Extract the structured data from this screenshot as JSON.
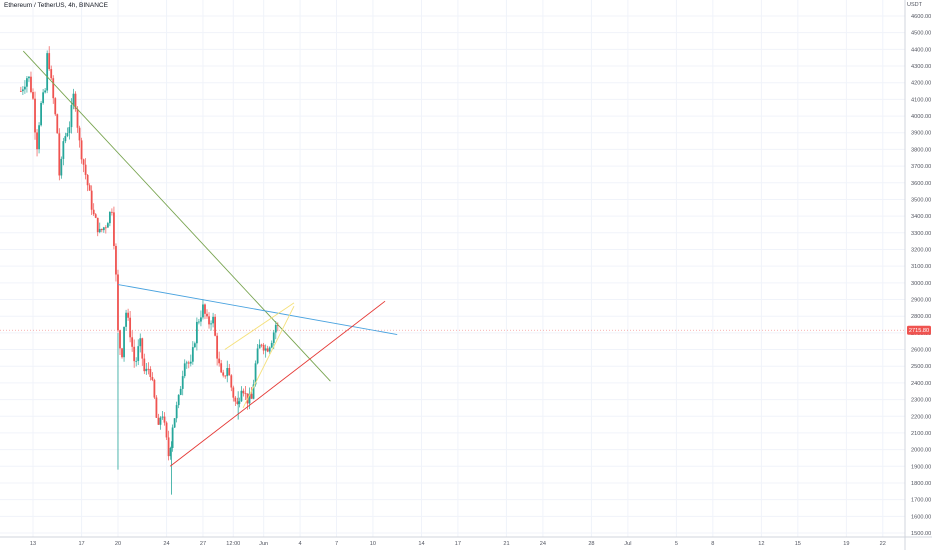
{
  "header": {
    "title": "Ethereum / TetherUS, 4h, BINANCE",
    "unit": "USDT"
  },
  "chart_data": {
    "type": "candlestick",
    "title": "Ethereum / TetherUS, 4h, BINANCE",
    "ylabel": "USDT",
    "ylim": [
      1500,
      4700
    ],
    "y_ticks": [
      "4600.00",
      "4500.00",
      "4400.00",
      "4300.00",
      "4200.00",
      "4100.00",
      "4000.00",
      "3900.00",
      "3800.00",
      "3700.00",
      "3600.00",
      "3500.00",
      "3400.00",
      "3300.00",
      "3200.00",
      "3100.00",
      "3000.00",
      "2900.00",
      "2800.00",
      "2700.00",
      "2600.00",
      "2500.00",
      "2400.00",
      "2300.00",
      "2200.00",
      "2100.00",
      "2000.00",
      "1900.00",
      "1800.00",
      "1700.00",
      "1600.00",
      "1500.00"
    ],
    "x_ticks": [
      {
        "label": "13",
        "day": 0
      },
      {
        "label": "17",
        "day": 4
      },
      {
        "label": "20",
        "day": 7
      },
      {
        "label": "24",
        "day": 11
      },
      {
        "label": "27",
        "day": 14
      },
      {
        "label": "12:00",
        "day": 16.5
      },
      {
        "label": "Jun",
        "day": 19
      },
      {
        "label": "4",
        "day": 22
      },
      {
        "label": "7",
        "day": 25
      },
      {
        "label": "10",
        "day": 28
      },
      {
        "label": "14",
        "day": 32
      },
      {
        "label": "17",
        "day": 35
      },
      {
        "label": "21",
        "day": 39
      },
      {
        "label": "24",
        "day": 42
      },
      {
        "label": "28",
        "day": 46
      },
      {
        "label": "Jul",
        "day": 49
      },
      {
        "label": "5",
        "day": 53
      },
      {
        "label": "8",
        "day": 56
      },
      {
        "label": "12",
        "day": 60
      },
      {
        "label": "15",
        "day": 63
      },
      {
        "label": "19",
        "day": 67
      },
      {
        "label": "22",
        "day": 70
      }
    ],
    "last_price": "2715.80",
    "last_price_value": 2715.8,
    "colors": {
      "up": "#26a69a",
      "down": "#ef5350",
      "grid": "#f0f3fa",
      "price_line": "#ef5350"
    },
    "anchors": [
      {
        "d": -1.0,
        "p": 4150
      },
      {
        "d": -0.4,
        "p": 4250
      },
      {
        "d": 0.0,
        "p": 4100
      },
      {
        "d": 0.3,
        "p": 3800
      },
      {
        "d": 0.6,
        "p": 4050
      },
      {
        "d": 1.0,
        "p": 4150
      },
      {
        "d": 1.2,
        "p": 4400
      },
      {
        "d": 1.5,
        "p": 4200
      },
      {
        "d": 2.0,
        "p": 3900
      },
      {
        "d": 2.2,
        "p": 3600
      },
      {
        "d": 2.5,
        "p": 3850
      },
      {
        "d": 3.0,
        "p": 3950
      },
      {
        "d": 3.4,
        "p": 4150
      },
      {
        "d": 3.8,
        "p": 3850
      },
      {
        "d": 4.2,
        "p": 3700
      },
      {
        "d": 4.6,
        "p": 3550
      },
      {
        "d": 5.0,
        "p": 3400
      },
      {
        "d": 5.5,
        "p": 3300
      },
      {
        "d": 6.0,
        "p": 3350
      },
      {
        "d": 6.5,
        "p": 3450
      },
      {
        "d": 6.8,
        "p": 3100
      },
      {
        "d": 7.0,
        "p": 2700
      },
      {
        "d": 7.3,
        "p": 2550
      },
      {
        "d": 7.6,
        "p": 2850
      },
      {
        "d": 8.0,
        "p": 2700
      },
      {
        "d": 8.4,
        "p": 2500
      },
      {
        "d": 8.8,
        "p": 2650
      },
      {
        "d": 9.2,
        "p": 2450
      },
      {
        "d": 9.6,
        "p": 2500
      },
      {
        "d": 10.0,
        "p": 2300
      },
      {
        "d": 10.3,
        "p": 2100
      },
      {
        "d": 10.6,
        "p": 2250
      },
      {
        "d": 11.0,
        "p": 2050
      },
      {
        "d": 11.2,
        "p": 1950
      },
      {
        "d": 11.5,
        "p": 2150
      },
      {
        "d": 12.0,
        "p": 2300
      },
      {
        "d": 12.5,
        "p": 2550
      },
      {
        "d": 13.0,
        "p": 2500
      },
      {
        "d": 13.5,
        "p": 2750
      },
      {
        "d": 14.0,
        "p": 2850
      },
      {
        "d": 14.4,
        "p": 2750
      },
      {
        "d": 14.8,
        "p": 2800
      },
      {
        "d": 15.2,
        "p": 2550
      },
      {
        "d": 15.6,
        "p": 2400
      },
      {
        "d": 16.0,
        "p": 2500
      },
      {
        "d": 16.4,
        "p": 2350
      },
      {
        "d": 16.8,
        "p": 2250
      },
      {
        "d": 17.2,
        "p": 2400
      },
      {
        "d": 17.6,
        "p": 2300
      },
      {
        "d": 18.0,
        "p": 2300
      },
      {
        "d": 18.4,
        "p": 2550
      },
      {
        "d": 18.8,
        "p": 2650
      },
      {
        "d": 19.2,
        "p": 2600
      },
      {
        "d": 19.6,
        "p": 2650
      },
      {
        "d": 20.0,
        "p": 2750
      },
      {
        "d": 20.3,
        "p": 2715.8
      }
    ],
    "trendlines": [
      {
        "name": "downtrend-line",
        "color": "#78a450",
        "from": {
          "d": -0.8,
          "p": 4390
        },
        "to": {
          "d": 24.5,
          "p": 2410
        }
      },
      {
        "name": "triangle-upper-line",
        "color": "#4aa3df",
        "from": {
          "d": 7.0,
          "p": 2990
        },
        "to": {
          "d": 30.0,
          "p": 2690
        }
      },
      {
        "name": "triangle-lower-line",
        "color": "#e53935",
        "from": {
          "d": 11.3,
          "p": 1900
        },
        "to": {
          "d": 29.0,
          "p": 2890
        }
      },
      {
        "name": "channel-line",
        "color": "#f5e07a",
        "from": {
          "d": 17.3,
          "p": 2250
        },
        "to": {
          "d": 21.5,
          "p": 2860
        }
      },
      {
        "name": "channel-line-upper",
        "color": "#f5e07a",
        "from": {
          "d": 15.8,
          "p": 2600
        },
        "to": {
          "d": 21.5,
          "p": 2880
        }
      }
    ],
    "wick_spikes": [
      {
        "d": 7.0,
        "high": 2700,
        "low": 1880
      },
      {
        "d": 11.4,
        "high": 2050,
        "low": 1730
      },
      {
        "d": 16.9,
        "high": 2350,
        "low": 2180
      }
    ]
  }
}
